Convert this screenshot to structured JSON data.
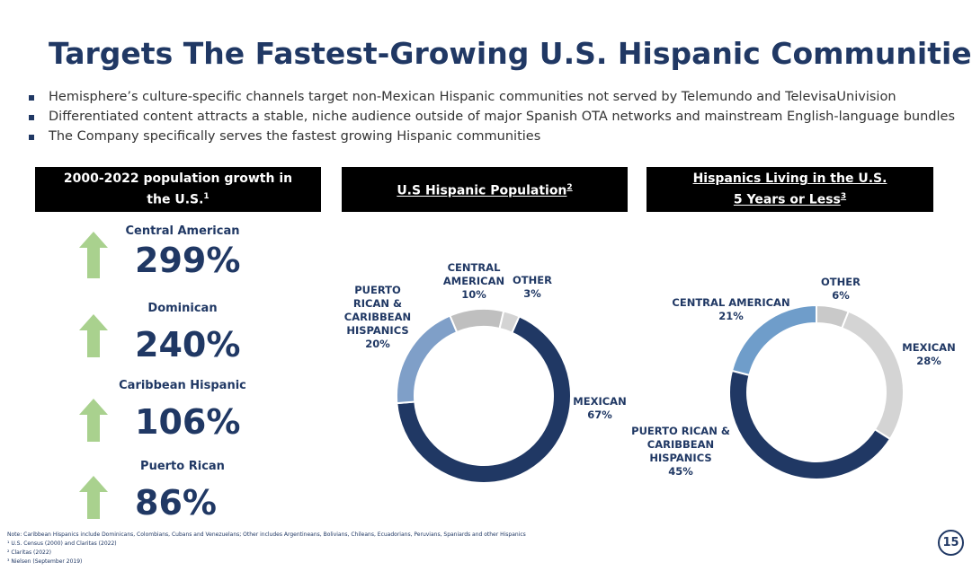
{
  "title": "Targets The Fastest-Growing U.S. Hispanic Communities",
  "bullets": [
    "Hemisphere’s culture-specific channels target non-Mexican Hispanic communities not served by Telemundo and TelevisaUnivision",
    "Differentiated content attracts a stable, niche audience outside of major Spanish OTA networks and mainstream English-language bundles",
    "The Company specifically serves the fastest growing Hispanic communities"
  ],
  "growth_header": {
    "text": "2000-2022 population growth in the U.S.",
    "note": "1"
  },
  "growth": [
    {
      "label": "Central American",
      "value": "299%"
    },
    {
      "label": "Dominican",
      "value": "240%"
    },
    {
      "label": "Caribbean Hispanic",
      "value": "106%"
    },
    {
      "label": "Puerto Rican",
      "value": "86%"
    }
  ],
  "chart_data": [
    {
      "type": "donut",
      "title_lines": [
        "U.S Hispanic Population"
      ],
      "title_note": "2",
      "categories": [
        "MEXICAN",
        "PUERTO RICAN & CARIBBEAN HISPANICS",
        "CENTRAL AMERICAN",
        "OTHER"
      ],
      "values": [
        67,
        20,
        10,
        3
      ],
      "value_labels": [
        "67%",
        "20%",
        "10%",
        "3%"
      ],
      "colors": [
        "#203864",
        "#7f9fc8",
        "#bfbfbf",
        "#d4d4d4"
      ]
    },
    {
      "type": "donut",
      "title_lines": [
        "Hispanics Living in the U.S.",
        "5 Years or Less"
      ],
      "title_note": "3",
      "categories": [
        "OTHER",
        "MEXICAN",
        "PUERTO RICAN & CARIBBEAN HISPANICS",
        "CENTRAL AMERICAN"
      ],
      "values": [
        6,
        28,
        45,
        21
      ],
      "value_labels": [
        "6%",
        "28%",
        "45%",
        "21%"
      ],
      "colors": [
        "#c9c9c9",
        "#d4d4d4",
        "#203864",
        "#6f9dca"
      ]
    }
  ],
  "footnotes": [
    "Note: Caribbean Hispanics include Dominicans, Colombians, Cubans and Venezuelans; Other includes Argentineans, Bolivians, Chileans, Ecuadorians, Peruvians, Spaniards and other Hispanics",
    "¹ U.S. Census (2000) and Claritas (2022)",
    "² Claritas (2022)",
    "³ Nielsen (September 2019)"
  ],
  "page_number": "15"
}
